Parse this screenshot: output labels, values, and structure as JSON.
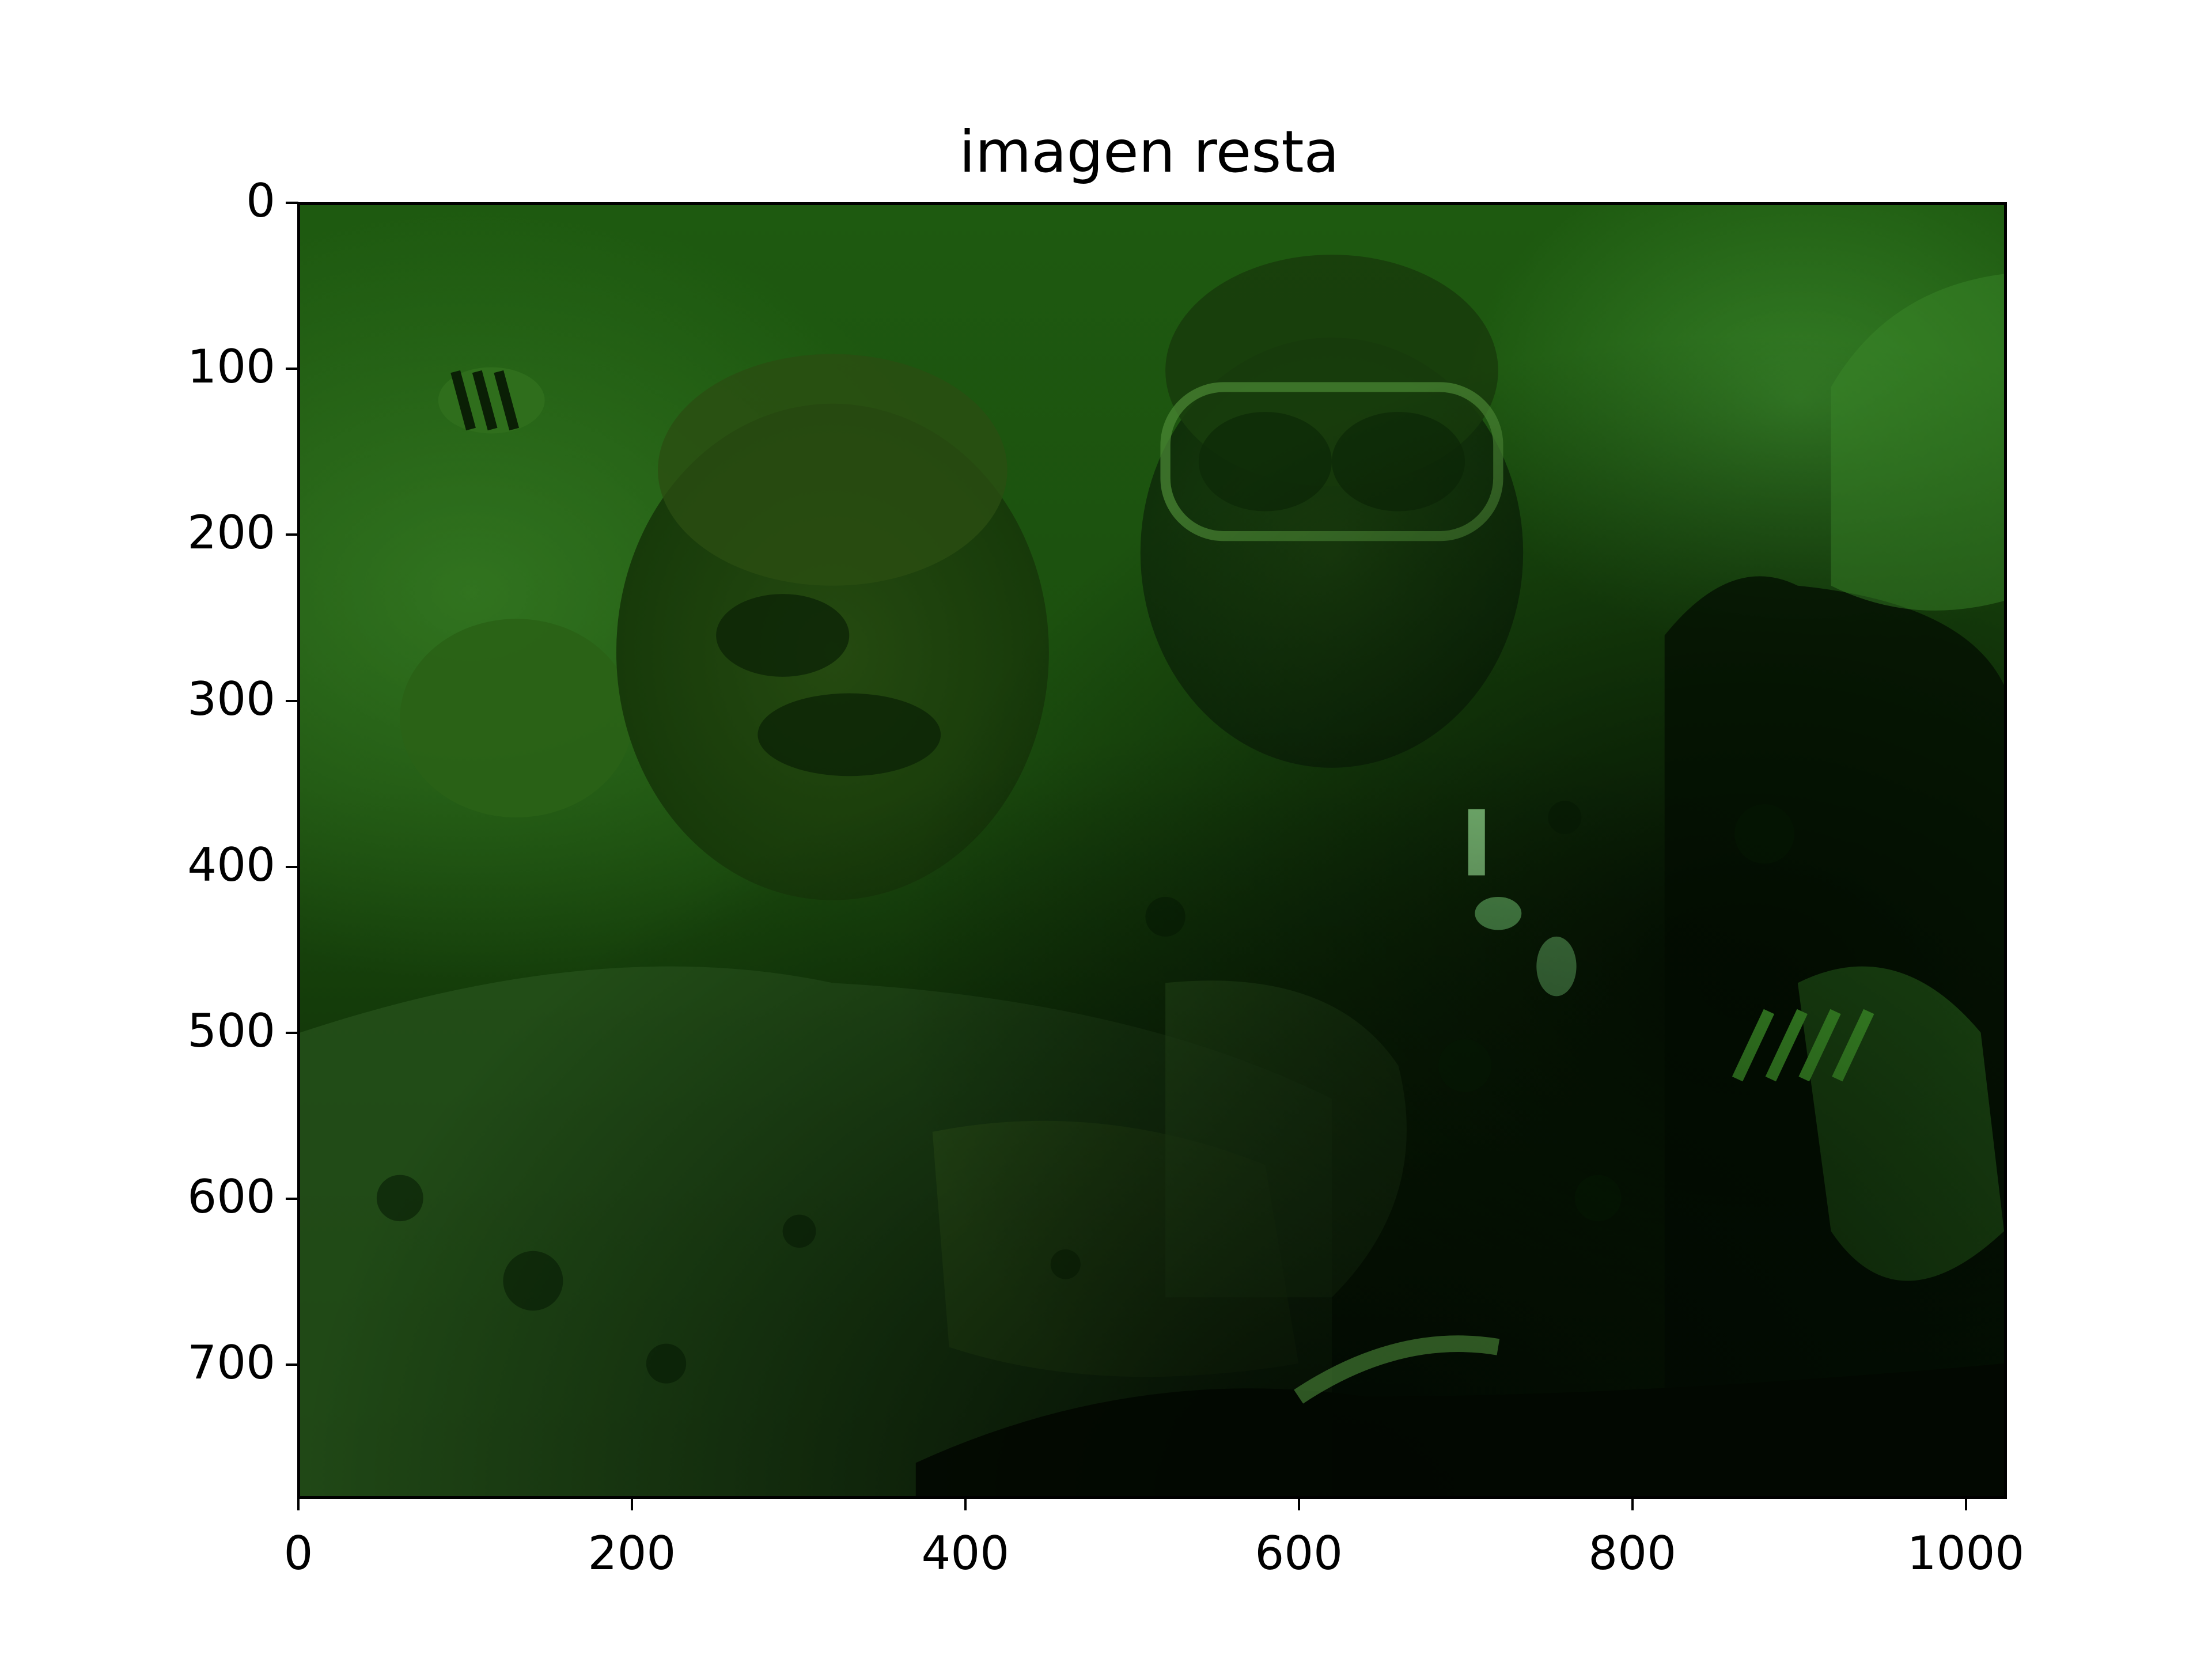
{
  "figure": {
    "title": "imagen resta"
  },
  "image": {
    "description_colors": {
      "dominant": "#1f4d0f",
      "dark": "#051a03",
      "bright": "#3d8a2a"
    },
    "x_ticks": [
      "0",
      "200",
      "400",
      "600",
      "800",
      "1000"
    ],
    "y_ticks": [
      "0",
      "100",
      "200",
      "300",
      "400",
      "500",
      "600",
      "700"
    ]
  }
}
